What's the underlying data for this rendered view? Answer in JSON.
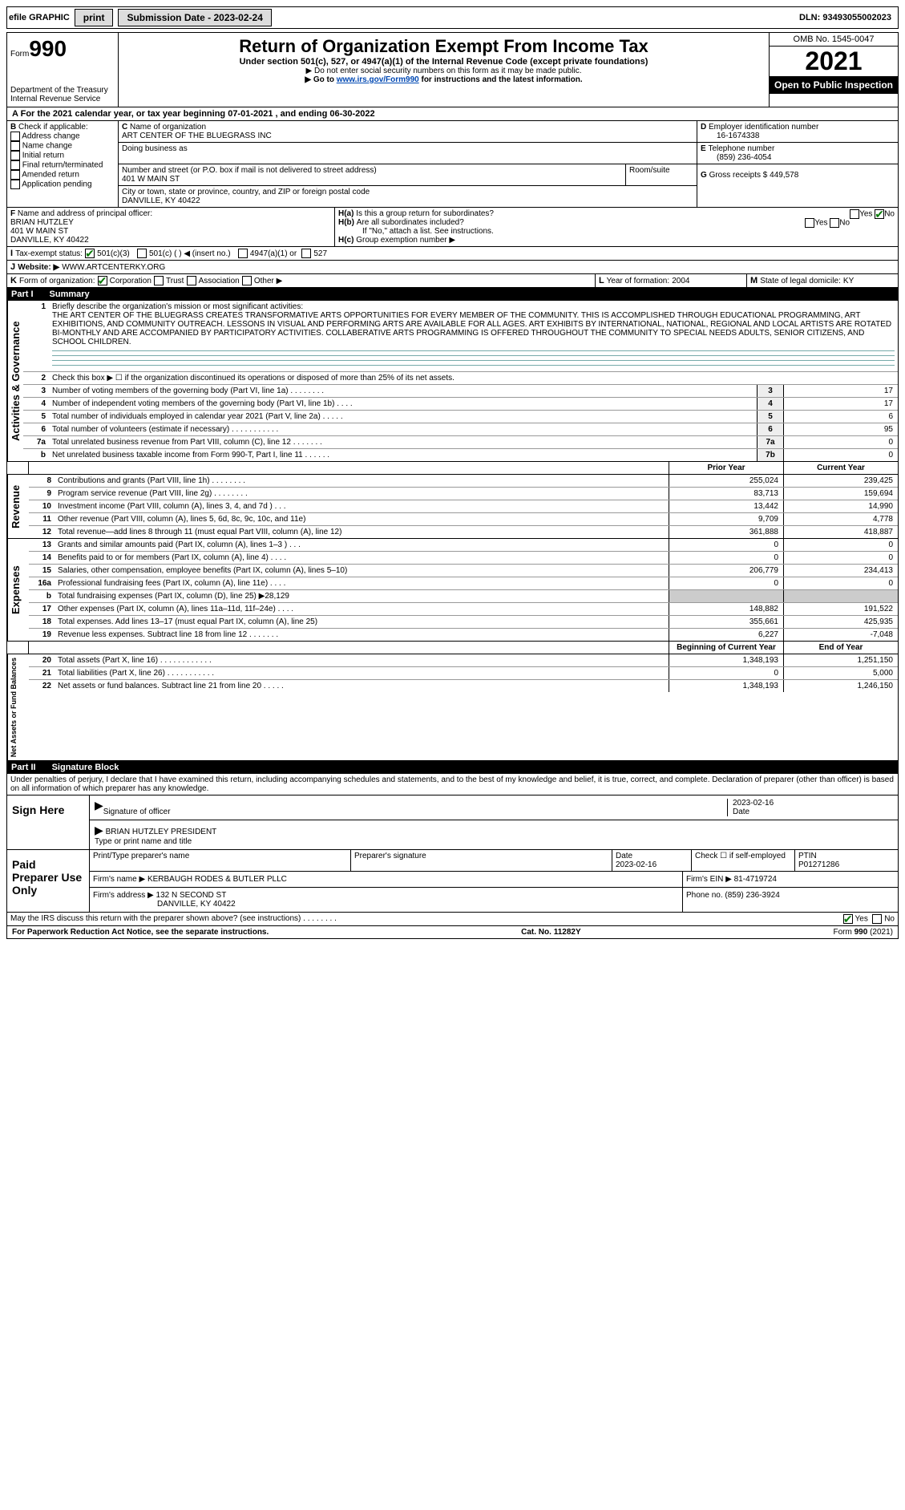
{
  "top": {
    "efile": "efile GRAPHIC",
    "print": "print",
    "submission_label": "Submission Date - 2023-02-24",
    "dln": "DLN: 93493055002023"
  },
  "hdr": {
    "form": "990",
    "form_prefix": "Form",
    "title": "Return of Organization Exempt From Income Tax",
    "sub1": "Under section 501(c), 527, or 4947(a)(1) of the Internal Revenue Code (except private foundations)",
    "sub2": "▶ Do not enter social security numbers on this form as it may be made public.",
    "sub3_pre": "▶ Go to ",
    "sub3_link": "www.irs.gov/Form990",
    "sub3_post": " for instructions and the latest information.",
    "dept": "Department of the Treasury",
    "irs": "Internal Revenue Service",
    "omb": "OMB No. 1545-0047",
    "year": "2021",
    "open": "Open to Public Inspection"
  },
  "periodA": "For the 2021 calendar year, or tax year beginning 07-01-2021   , and ending 06-30-2022",
  "B": {
    "hdr": "Check if applicable:",
    "addr": "Address change",
    "name": "Name change",
    "init": "Initial return",
    "final": "Final return/terminated",
    "amend": "Amended return",
    "app": "Application pending"
  },
  "C": {
    "label": "Name of organization",
    "name": "ART CENTER OF THE BLUEGRASS INC",
    "dba_label": "Doing business as",
    "street_label": "Number and street (or P.O. box if mail is not delivered to street address)",
    "street": "401 W MAIN ST",
    "room_label": "Room/suite",
    "city_label": "City or town, state or province, country, and ZIP or foreign postal code",
    "city": "DANVILLE, KY  40422"
  },
  "D": {
    "label": "Employer identification number",
    "val": "16-1674338"
  },
  "E": {
    "label": "Telephone number",
    "val": "(859) 236-4054"
  },
  "G": {
    "label": "Gross receipts $",
    "val": "449,578"
  },
  "F": {
    "label": "Name and address of principal officer:",
    "name": "BRIAN HUTZLEY",
    "addr1": "401 W MAIN ST",
    "addr2": "DANVILLE, KY  40422"
  },
  "H": {
    "a": "Is this a group return for subordinates?",
    "b": "Are all subordinates included?",
    "note": "If \"No,\" attach a list. See instructions.",
    "c": "Group exemption number ▶",
    "yes": "Yes",
    "no": "No"
  },
  "I": {
    "label": "Tax-exempt status:",
    "c3": "501(c)(3)",
    "c": "501(c) (   ) ◀ (insert no.)",
    "a1": "4947(a)(1) or",
    "527": "527"
  },
  "J": {
    "label": "Website: ▶",
    "val": "WWW.ARTCENTERKY.ORG"
  },
  "K": {
    "label": "Form of organization:",
    "corp": "Corporation",
    "trust": "Trust",
    "assoc": "Association",
    "other": "Other ▶"
  },
  "L": {
    "label": "Year of formation:",
    "val": "2004"
  },
  "M": {
    "label": "State of legal domicile:",
    "val": "KY"
  },
  "part1": {
    "pt": "Part I",
    "title": "Summary"
  },
  "p1": {
    "q1": "Briefly describe the organization's mission or most significant activities:",
    "mission": "THE ART CENTER OF THE BLUEGRASS CREATES TRANSFORMATIVE ARTS OPPORTUNITIES FOR EVERY MEMBER OF THE COMMUNITY. THIS IS ACCOMPLISHED THROUGH EDUCATIONAL PROGRAMMING, ART EXHIBITIONS, AND COMMUNITY OUTREACH. LESSONS IN VISUAL AND PERFORMING ARTS ARE AVAILABLE FOR ALL AGES. ART EXHIBITS BY INTERNATIONAL, NATIONAL, REGIONAL AND LOCAL ARTISTS ARE ROTATED BI-MONTHLY AND ARE ACCOMPANIED BY PARTICIPATORY ACTIVITIES. COLLABERATIVE ARTS PROGRAMMING IS OFFERED THROUGHOUT THE COMMUNITY TO SPECIAL NEEDS ADULTS, SENIOR CITIZENS, AND SCHOOL CHILDREN.",
    "q2": "Check this box ▶ ☐ if the organization discontinued its operations or disposed of more than 25% of its net assets.",
    "lines": [
      {
        "n": "3",
        "d": "Number of voting members of the governing body (Part VI, line 1a)   .    .    .    .    .    .    .    .",
        "b": "3",
        "v": "17"
      },
      {
        "n": "4",
        "d": "Number of independent voting members of the governing body (Part VI, line 1b)   .    .    .    .",
        "b": "4",
        "v": "17"
      },
      {
        "n": "5",
        "d": "Total number of individuals employed in calendar year 2021 (Part V, line 2a)   .    .    .    .    .",
        "b": "5",
        "v": "6"
      },
      {
        "n": "6",
        "d": "Total number of volunteers (estimate if necessary)   .    .    .    .    .    .    .    .    .    .    .",
        "b": "6",
        "v": "95"
      },
      {
        "n": "7a",
        "d": "Total unrelated business revenue from Part VIII, column (C), line 12   .    .    .    .    .    .    .",
        "b": "7a",
        "v": "0"
      },
      {
        "n": "b",
        "d": "Net unrelated business taxable income from Form 990-T, Part I, line 11   .    .    .    .    .    .",
        "b": "7b",
        "v": "0"
      }
    ],
    "col_prior": "Prior Year",
    "col_curr": "Current Year",
    "rev": [
      {
        "n": "8",
        "d": "Contributions and grants (Part VIII, line 1h)   .    .    .    .    .    .    .    .",
        "p": "255,024",
        "c": "239,425"
      },
      {
        "n": "9",
        "d": "Program service revenue (Part VIII, line 2g)   .    .    .    .    .    .    .    .",
        "p": "83,713",
        "c": "159,694"
      },
      {
        "n": "10",
        "d": "Investment income (Part VIII, column (A), lines 3, 4, and 7d )   .    .    .",
        "p": "13,442",
        "c": "14,990"
      },
      {
        "n": "11",
        "d": "Other revenue (Part VIII, column (A), lines 5, 6d, 8c, 9c, 10c, and 11e)",
        "p": "9,709",
        "c": "4,778"
      },
      {
        "n": "12",
        "d": "Total revenue—add lines 8 through 11 (must equal Part VIII, column (A), line 12)",
        "p": "361,888",
        "c": "418,887"
      }
    ],
    "exp": [
      {
        "n": "13",
        "d": "Grants and similar amounts paid (Part IX, column (A), lines 1–3 )   .    .    .",
        "p": "0",
        "c": "0"
      },
      {
        "n": "14",
        "d": "Benefits paid to or for members (Part IX, column (A), line 4)   .    .    .    .",
        "p": "0",
        "c": "0"
      },
      {
        "n": "15",
        "d": "Salaries, other compensation, employee benefits (Part IX, column (A), lines 5–10)",
        "p": "206,779",
        "c": "234,413"
      },
      {
        "n": "16a",
        "d": "Professional fundraising fees (Part IX, column (A), line 11e)   .    .    .    .",
        "p": "0",
        "c": "0"
      },
      {
        "n": "b",
        "d": "Total fundraising expenses (Part IX, column (D), line 25) ▶28,129",
        "p": "",
        "c": "",
        "shade": true
      },
      {
        "n": "17",
        "d": "Other expenses (Part IX, column (A), lines 11a–11d, 11f–24e)   .    .    .    .",
        "p": "148,882",
        "c": "191,522"
      },
      {
        "n": "18",
        "d": "Total expenses. Add lines 13–17 (must equal Part IX, column (A), line 25)",
        "p": "355,661",
        "c": "425,935"
      },
      {
        "n": "19",
        "d": "Revenue less expenses. Subtract line 18 from line 12   .    .    .    .    .    .    .",
        "p": "6,227",
        "c": "-7,048"
      }
    ],
    "col_boy": "Beginning of Current Year",
    "col_eoy": "End of Year",
    "na": [
      {
        "n": "20",
        "d": "Total assets (Part X, line 16)   .    .    .    .    .    .    .    .    .    .    .    .",
        "p": "1,348,193",
        "c": "1,251,150"
      },
      {
        "n": "21",
        "d": "Total liabilities (Part X, line 26)   .    .    .    .    .    .    .    .    .    .    .",
        "p": "0",
        "c": "5,000"
      },
      {
        "n": "22",
        "d": "Net assets or fund balances. Subtract line 21 from line 20   .    .    .    .    .",
        "p": "1,348,193",
        "c": "1,246,150"
      }
    ]
  },
  "sideLabels": {
    "ag": "Activities & Governance",
    "rev": "Revenue",
    "exp": "Expenses",
    "na": "Net Assets or Fund Balances"
  },
  "part2": {
    "pt": "Part II",
    "title": "Signature Block"
  },
  "p2": {
    "decl": "Under penalties of perjury, I declare that I have examined this return, including accompanying schedules and statements, and to the best of my knowledge and belief, it is true, correct, and complete. Declaration of preparer (other than officer) is based on all information of which preparer has any knowledge.",
    "sign_here": "Sign Here",
    "sig_off": "Signature of officer",
    "date": "Date",
    "date_val": "2023-02-16",
    "name_title": "BRIAN HUTZLEY PRESIDENT",
    "type_name": "Type or print name and title",
    "paid": "Paid Preparer Use Only",
    "prep_name_label": "Print/Type preparer's name",
    "prep_sig_label": "Preparer's signature",
    "prep_date": "2023-02-16",
    "check_se": "Check ☐ if self-employed",
    "ptin_label": "PTIN",
    "ptin": "P01271286",
    "firm_name_label": "Firm's name    ▶",
    "firm_name": "KERBAUGH RODES & BUTLER PLLC",
    "firm_ein_label": "Firm's EIN ▶",
    "firm_ein": "81-4719724",
    "firm_addr_label": "Firm's address ▶",
    "firm_addr1": "132 N SECOND ST",
    "firm_addr2": "DANVILLE, KY  40422",
    "phone_label": "Phone no.",
    "phone": "(859) 236-3924",
    "discuss": "May the IRS discuss this return with the preparer shown above? (see instructions)   .    .    .    .    .    .    .    .",
    "yes": "Yes",
    "no": "No"
  },
  "footer": {
    "pra": "For Paperwork Reduction Act Notice, see the separate instructions.",
    "cat": "Cat. No. 11282Y",
    "form": "Form 990 (2021)"
  }
}
